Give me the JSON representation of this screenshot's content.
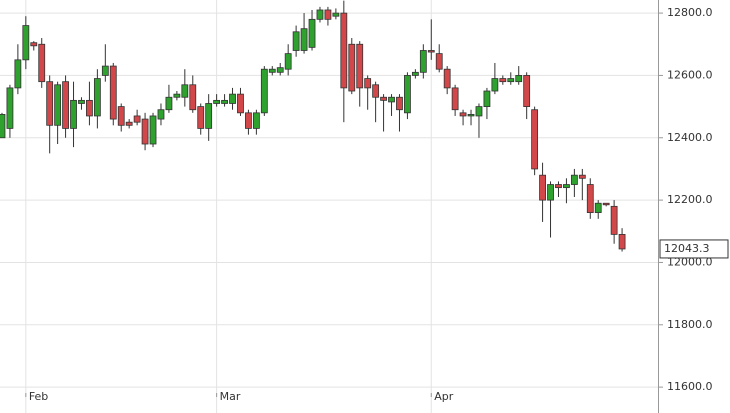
{
  "chart_data": {
    "type": "candlestick",
    "categories": [
      null,
      null,
      null,
      "Feb",
      null,
      null,
      null,
      null,
      null,
      null,
      null,
      null,
      null,
      null,
      null,
      null,
      null,
      null,
      null,
      null,
      null,
      null,
      null,
      null,
      null,
      null,
      null,
      "Mar",
      null,
      null,
      null,
      null,
      null,
      null,
      null,
      null,
      null,
      null,
      null,
      null,
      null,
      null,
      null,
      null,
      null,
      null,
      null,
      null,
      null,
      null,
      null,
      null,
      null,
      null,
      "Apr",
      null,
      null,
      null,
      null,
      null,
      null,
      null,
      null,
      null,
      null,
      null,
      null,
      null,
      null,
      null,
      null,
      null,
      null,
      null,
      null,
      null,
      null,
      null,
      null
    ],
    "series": [
      {
        "open": [
          12400,
          12430,
          12560,
          12650,
          12705,
          12700,
          12580,
          12440,
          12580,
          12430,
          12510,
          12520,
          12470,
          12600,
          12630,
          12500,
          12450,
          12470,
          12460,
          12380,
          12460,
          12490,
          12530,
          12530,
          12570,
          12500,
          12430,
          12510,
          12510,
          12510,
          12540,
          12480,
          12430,
          12480,
          12610,
          12610,
          12620,
          12680,
          12680,
          12690,
          12780,
          12810,
          12790,
          12800,
          12700,
          12700,
          12590,
          12570,
          12530,
          12515,
          12530,
          12480,
          12600,
          12610,
          12680,
          12670,
          12620,
          12560,
          12480,
          12470,
          12470,
          12500,
          12550,
          12590,
          12580,
          12580,
          12600,
          12490,
          12280,
          12200,
          12250,
          12240,
          12250,
          12280,
          12250,
          12160,
          12190,
          12180,
          12090
        ],
        "high": [
          12480,
          12570,
          12700,
          12790,
          12710,
          12720,
          12600,
          12580,
          12600,
          12580,
          12530,
          12580,
          12620,
          12700,
          12640,
          12510,
          12460,
          12490,
          12480,
          12480,
          12510,
          12570,
          12550,
          12620,
          12600,
          12510,
          12540,
          12540,
          12540,
          12560,
          12560,
          12490,
          12490,
          12630,
          12630,
          12640,
          12700,
          12760,
          12800,
          12810,
          12820,
          12820,
          12815,
          12840,
          12720,
          12710,
          12600,
          12580,
          12540,
          12540,
          12540,
          12610,
          12620,
          12700,
          12780,
          12700,
          12630,
          12570,
          12490,
          12490,
          12510,
          12560,
          12640,
          12600,
          12610,
          12630,
          12610,
          12500,
          12320,
          12260,
          12260,
          12270,
          12300,
          12300,
          12270,
          12200,
          12190,
          12200,
          12110
        ],
        "low": [
          12400,
          12400,
          12540,
          12620,
          12680,
          12560,
          12350,
          12380,
          12400,
          12370,
          12490,
          12440,
          12430,
          12580,
          12440,
          12420,
          12430,
          12440,
          12360,
          12370,
          12440,
          12480,
          12520,
          12500,
          12480,
          12410,
          12390,
          12500,
          12500,
          12490,
          12470,
          12410,
          12410,
          12470,
          12600,
          12600,
          12600,
          12660,
          12670,
          12680,
          12770,
          12760,
          12780,
          12450,
          12540,
          12500,
          12490,
          12450,
          12420,
          12470,
          12420,
          12460,
          12590,
          12590,
          12650,
          12610,
          12540,
          12470,
          12440,
          12440,
          12400,
          12460,
          12540,
          12570,
          12570,
          12570,
          12460,
          12280,
          12130,
          12080,
          12210,
          12190,
          12210,
          12200,
          12140,
          12140,
          12180,
          12060,
          12035
        ],
        "close": [
          12475,
          12560,
          12650,
          12760,
          12695,
          12580,
          12440,
          12570,
          12430,
          12520,
          12520,
          12470,
          12590,
          12630,
          12460,
          12440,
          12440,
          12450,
          12380,
          12470,
          12490,
          12530,
          12540,
          12570,
          12490,
          12430,
          12510,
          12520,
          12520,
          12540,
          12480,
          12430,
          12480,
          12620,
          12620,
          12625,
          12670,
          12740,
          12750,
          12780,
          12810,
          12780,
          12800,
          12560,
          12550,
          12560,
          12560,
          12530,
          12520,
          12530,
          12490,
          12600,
          12610,
          12680,
          12675,
          12620,
          12560,
          12490,
          12470,
          12475,
          12500,
          12550,
          12590,
          12580,
          12590,
          12600,
          12500,
          12300,
          12200,
          12250,
          12240,
          12250,
          12280,
          12270,
          12160,
          12190,
          12185,
          12090,
          12043.3
        ]
      }
    ],
    "up_color": "#2fa12f",
    "down_color": "#d2474a",
    "last_label": "12043.3",
    "ylim": [
      11517,
      12842
    ],
    "yticks": [
      {
        "value": 11600,
        "label": "11600.0"
      },
      {
        "value": 11800,
        "label": "11800.0"
      },
      {
        "value": 12000,
        "label": "12000.0"
      },
      {
        "value": 12200,
        "label": "12200.0"
      },
      {
        "value": 12400,
        "label": "12400.0"
      },
      {
        "value": 12600,
        "label": "12600.0"
      },
      {
        "value": 12800,
        "label": "12800.0"
      }
    ],
    "grid": true
  }
}
